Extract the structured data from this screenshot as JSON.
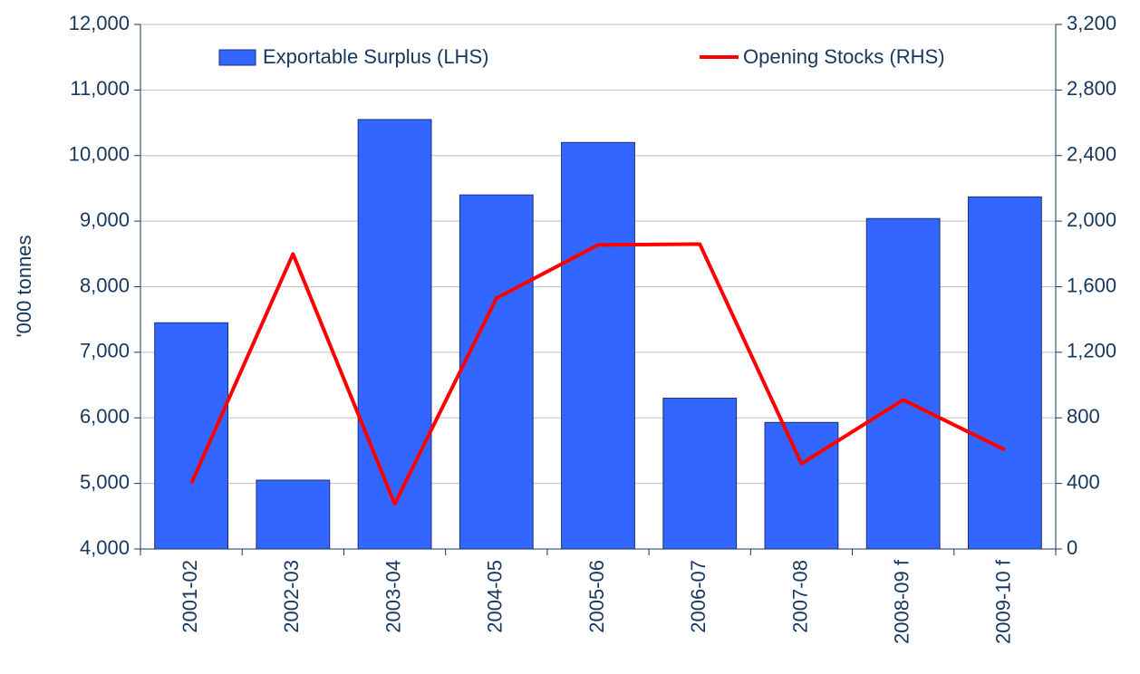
{
  "chart_data": {
    "type": "bar_line",
    "y_label": "'000 tonnes",
    "categories": [
      "2001-02",
      "2002-03",
      "2003-04",
      "2004-05",
      "2005-06",
      "2006-07",
      "2007-08",
      "2008-09 f",
      "2009-10 f"
    ],
    "series": [
      {
        "name": "Exportable Surplus (LHS)",
        "type": "bar",
        "color": "#3366ff",
        "values": [
          7450,
          5050,
          10550,
          9400,
          10200,
          6300,
          5930,
          9040,
          9370
        ]
      },
      {
        "name": "Opening Stocks (RHS)",
        "type": "line",
        "axis": "y2",
        "color": "#ff0000",
        "values": [
          400,
          1800,
          275,
          1530,
          1855,
          1860,
          520,
          910,
          605
        ]
      }
    ],
    "ylim": [
      4000,
      12000
    ],
    "yticks": [
      {
        "value": 4000,
        "label": "4,000"
      },
      {
        "value": 5000,
        "label": "5,000"
      },
      {
        "value": 6000,
        "label": "6,000"
      },
      {
        "value": 7000,
        "label": "7,000"
      },
      {
        "value": 8000,
        "label": "8,000"
      },
      {
        "value": 9000,
        "label": "9,000"
      },
      {
        "value": 10000,
        "label": "10,000"
      },
      {
        "value": 11000,
        "label": "11,000"
      },
      {
        "value": 12000,
        "label": "12,000"
      }
    ],
    "y2lim": [
      0,
      3200
    ],
    "y2ticks": [
      0,
      400,
      800,
      {
        "value": 1200,
        "label": "1,200"
      },
      {
        "value": 1600,
        "label": "1,600"
      },
      {
        "value": 2000,
        "label": "2,000"
      },
      {
        "value": 2400,
        "label": "2,400"
      },
      {
        "value": 2800,
        "label": "2,800"
      },
      {
        "value": 3200,
        "label": "3,200"
      }
    ],
    "grid": true,
    "legend": "top"
  }
}
